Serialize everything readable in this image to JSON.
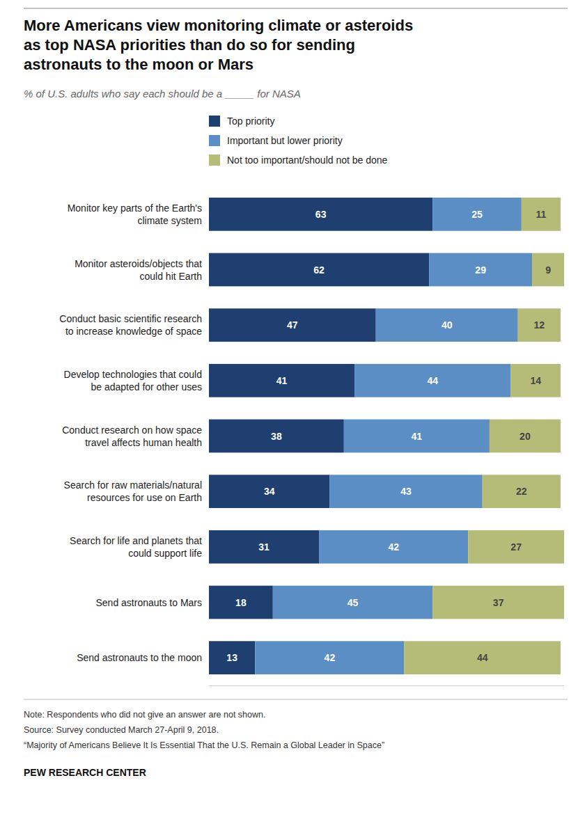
{
  "chart_data": {
    "type": "bar",
    "orientation": "horizontal",
    "stacked": true,
    "data_labels": true,
    "tick_labels": "y",
    "grid": false,
    "title": "More Americans view monitoring climate or asteroids\nas top NASA priorities than do so for sending\nastronauts to the moon or Mars",
    "subtitle": "% of U.S. adults who say each should be a _____ for NASA",
    "categories": [
      "Monitor key parts of the Earth's\nclimate system",
      "Monitor asteroids/objects that\ncould hit Earth",
      "Conduct basic scientific research\nto increase knowledge of space",
      "Develop technologies that could\nbe adapted for other uses",
      "Conduct research on how space\ntravel affects human health",
      "Search for raw materials/natural\nresources for use on Earth",
      "Search for life and planets that\ncould support life",
      "Send astronauts to Mars",
      "Send astronauts to the moon"
    ],
    "series": [
      {
        "name": "Top priority",
        "color": "#1e3f6f",
        "values": [
          63,
          62,
          47,
          41,
          38,
          34,
          31,
          18,
          13
        ]
      },
      {
        "name": "Important but lower priority",
        "color": "#5b8ec4",
        "values": [
          25,
          29,
          40,
          44,
          41,
          43,
          42,
          45,
          42
        ]
      },
      {
        "name": "Not too important/should not be done",
        "color": "#b5bc78",
        "values": [
          11,
          9,
          12,
          14,
          20,
          22,
          27,
          37,
          44
        ]
      }
    ],
    "xlim": [
      0,
      100
    ],
    "xticks": [],
    "notes": [
      "Note: Respondents who did not give an answer are not shown.",
      "Source: Survey conducted March 27-April 9, 2018.",
      "“Majority of Americans Believe It Is Essential That the U.S. Remain a Global Leader in Space”"
    ],
    "source": "PEW RESEARCH CENTER"
  }
}
